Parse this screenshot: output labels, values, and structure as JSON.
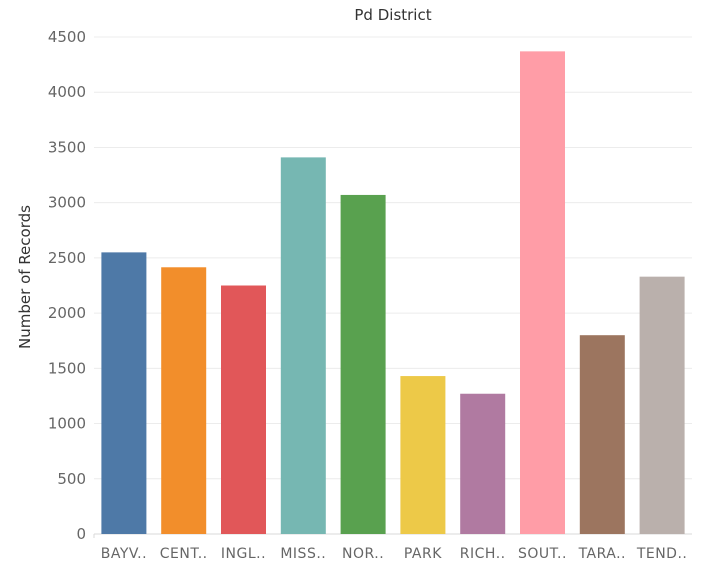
{
  "chart_data": {
    "type": "bar",
    "title": "Pd District",
    "xlabel": "",
    "ylabel": "Number of Records",
    "categories": [
      "BAYV..",
      "CENT..",
      "INGL..",
      "MISS..",
      "NOR..",
      "PARK",
      "RICH..",
      "SOUT..",
      "TARA..",
      "TEND.."
    ],
    "values": [
      2550,
      2415,
      2250,
      3410,
      3070,
      1430,
      1270,
      4370,
      1800,
      2330
    ],
    "colors": [
      "#4e79a7",
      "#f28e2b",
      "#e15759",
      "#76b7b2",
      "#59a14f",
      "#edc948",
      "#b07aa1",
      "#ff9da7",
      "#9c755f",
      "#bab0ac"
    ],
    "yticks": [
      0,
      500,
      1000,
      1500,
      2000,
      2500,
      3000,
      3500,
      4000,
      4500
    ],
    "ylim": [
      0,
      4500
    ],
    "grid": true,
    "legend": "none"
  }
}
